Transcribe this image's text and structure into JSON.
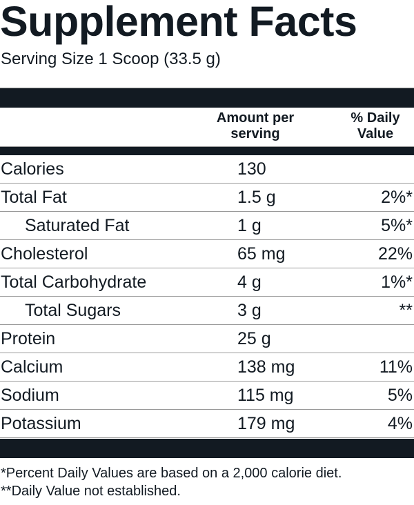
{
  "title": "Supplement Facts",
  "serving_size": "Serving Size 1 Scoop (33.5 g)",
  "header": {
    "amount_line1": "Amount per",
    "amount_line2": "serving",
    "dv_line1": "% Daily",
    "dv_line2": "Value"
  },
  "rows": [
    {
      "name": "Calories",
      "amount": "130",
      "dv": "",
      "indent": false
    },
    {
      "name": "Total Fat",
      "amount": "1.5 g",
      "dv": "2%*",
      "indent": false
    },
    {
      "name": "Saturated Fat",
      "amount": "1 g",
      "dv": "5%*",
      "indent": true
    },
    {
      "name": "Cholesterol",
      "amount": "65 mg",
      "dv": "22%",
      "indent": false
    },
    {
      "name": "Total Carbohydrate",
      "amount": "4 g",
      "dv": "1%*",
      "indent": false
    },
    {
      "name": "Total Sugars",
      "amount": "3 g",
      "dv": "**",
      "indent": true
    },
    {
      "name": "Protein",
      "amount": "25 g",
      "dv": "",
      "indent": false
    },
    {
      "name": "Calcium",
      "amount": "138 mg",
      "dv": "11%",
      "indent": false
    },
    {
      "name": "Sodium",
      "amount": "115 mg",
      "dv": "5%",
      "indent": false
    },
    {
      "name": "Potassium",
      "amount": "179 mg",
      "dv": "4%",
      "indent": false
    }
  ],
  "footnotes": [
    "*Percent Daily Values are based on a 2,000 calorie diet.",
    "**Daily Value not established."
  ],
  "colors": {
    "ink": "#121a22",
    "rule": "#999999"
  }
}
